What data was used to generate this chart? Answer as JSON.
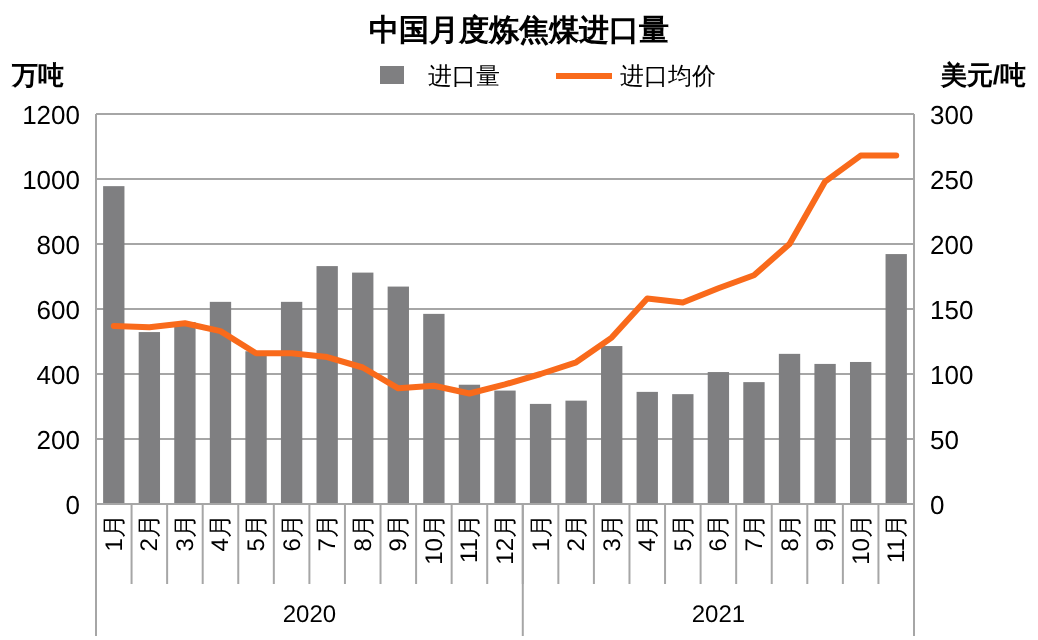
{
  "chart_data": {
    "type": "bar",
    "title": "中国月度炼焦煤进口量",
    "ylabel": "万吨",
    "y2label": "美元/吨",
    "categories": [
      "1月",
      "2月",
      "3月",
      "4月",
      "5月",
      "6月",
      "7月",
      "8月",
      "9月",
      "10月",
      "11月",
      "12月",
      "1月",
      "2月",
      "3月",
      "4月",
      "5月",
      "6月",
      "7月",
      "8月",
      "9月",
      "10月",
      "11月"
    ],
    "annotations": [
      "2020",
      "2021"
    ],
    "series": [
      {
        "name": "进口量",
        "color": "#7f7f81",
        "values": [
          978,
          529,
          560,
          622,
          470,
          622,
          732,
          712,
          669,
          585,
          367,
          349,
          308,
          318,
          486,
          345,
          338,
          406,
          375,
          462,
          431,
          437,
          769
        ]
      },
      {
        "name": "进口均价",
        "type": "line",
        "axis": "y2",
        "color": "#f96a1b",
        "values": [
          137,
          136,
          139,
          133,
          116,
          116,
          113,
          105,
          89,
          91,
          85,
          92,
          100,
          109,
          128,
          158,
          155,
          166,
          176,
          200,
          248,
          268,
          268
        ]
      }
    ],
    "ylim": [
      0,
      1200
    ],
    "yticks": [
      0,
      200,
      400,
      600,
      800,
      1000,
      1200
    ],
    "y2lim": [
      0,
      300
    ],
    "y2ticks": [
      0,
      50,
      100,
      150,
      200,
      250,
      300
    ],
    "grid": "y",
    "legend": "top"
  }
}
